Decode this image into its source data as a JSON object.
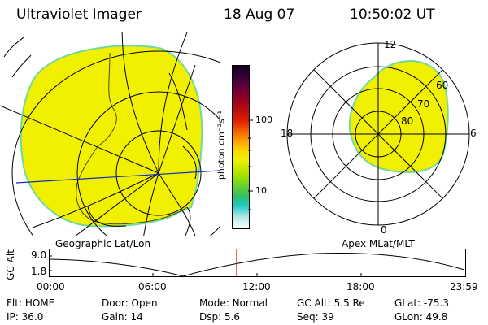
{
  "header": {
    "title": "Ultraviolet Imager",
    "date": "18 Aug 07",
    "time": "10:50:02 UT"
  },
  "left_panel": {
    "caption": "Geographic Lat/Lon"
  },
  "right_panel": {
    "caption": "Apex MLat/MLT",
    "mlt_labels": {
      "top": "12",
      "left": "18",
      "right": "6",
      "bottom": "0"
    },
    "lat_labels": [
      "60",
      "70",
      "80"
    ]
  },
  "colorbar": {
    "unit_label": "photon cm⁻²s⁻¹",
    "ticks": [
      "100",
      "10"
    ]
  },
  "altitude_plot": {
    "ylabel": "GC Alt",
    "y_ticks": [
      "9.0",
      "1.8"
    ],
    "x_ticks": [
      "00:00",
      "06:00",
      "12:00",
      "18:00",
      "23:59"
    ],
    "current_time_marker": "10:50"
  },
  "status": {
    "row1": [
      {
        "label": "Flt:",
        "value": "HOME"
      },
      {
        "label": "Door:",
        "value": "Open"
      },
      {
        "label": "Mode:",
        "value": "Normal"
      },
      {
        "label": "GC Alt:",
        "value": "5.5 Re"
      },
      {
        "label": "GLat:",
        "value": "-75.3"
      }
    ],
    "row2": [
      {
        "label": "IP:",
        "value": "36.0"
      },
      {
        "label": "Gain:",
        "value": "14"
      },
      {
        "label": "Dsp:",
        "value": "5.6"
      },
      {
        "label": "Seq:",
        "value": "39"
      },
      {
        "label": "GLon:",
        "value": "49.8"
      }
    ]
  },
  "colors": {
    "emission": "#f0f000",
    "emission_edge": "#70d8a0",
    "grid": "#000000",
    "meridian": "#1030c0",
    "time_marker": "#d00000"
  }
}
